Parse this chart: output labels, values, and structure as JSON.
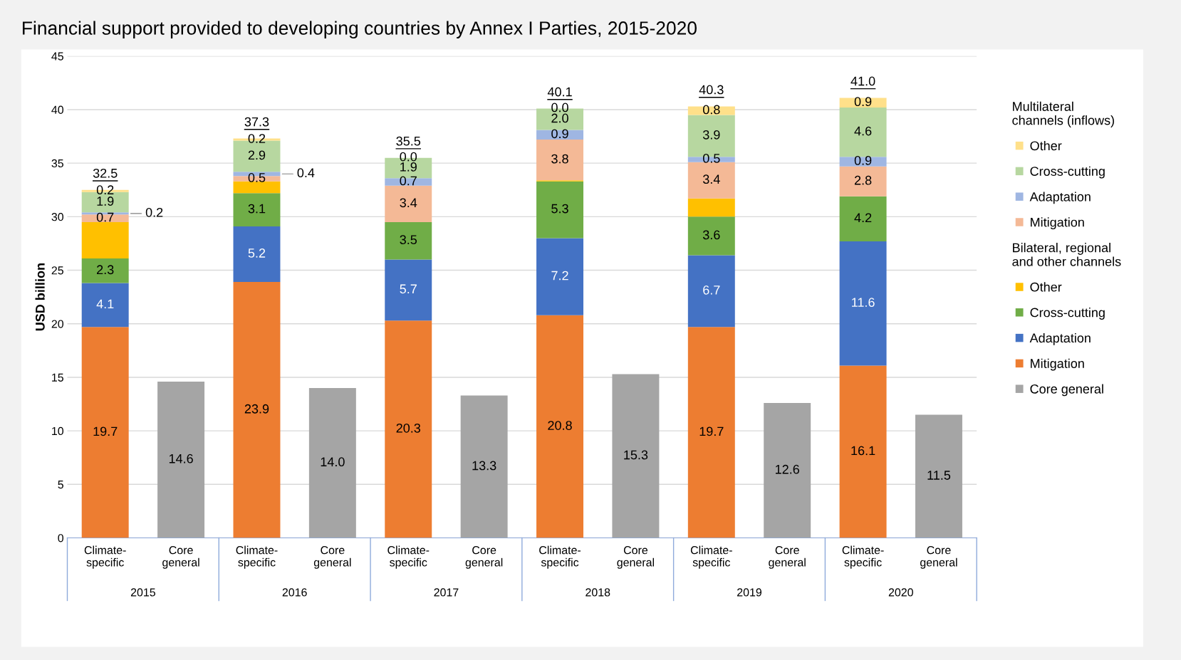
{
  "chart_data": {
    "type": "bar",
    "title": "Financial support provided to developing countries by Annex I Parties, 2015-2020",
    "ylabel": "USD billion",
    "categories": [
      "Climate-\nspecific",
      "Core\ngeneral",
      "Climate-\nspecific",
      "Core\ngeneral",
      "Climate-\nspecific",
      "Core\ngeneral",
      "Climate-\nspecific",
      "Core\ngeneral",
      "Climate-\nspecific",
      "Core\ngeneral",
      "Climate-\nspecific",
      "Core\ngeneral"
    ],
    "stacked": true,
    "series": [
      {
        "name": "Mitigation",
        "color": "#ed7d31",
        "values": [
          19.7,
          null,
          23.9,
          null,
          20.3,
          null,
          20.8,
          null,
          19.7,
          null,
          16.1,
          null
        ],
        "value_labels": [
          "19.7",
          null,
          "23.9",
          null,
          "20.3",
          null,
          "20.8",
          null,
          "19.7",
          null,
          "16.1",
          null
        ]
      },
      {
        "name": "Adaptation",
        "color": "#4472c4",
        "values": [
          4.1,
          null,
          5.2,
          null,
          5.7,
          null,
          7.2,
          null,
          6.7,
          null,
          11.6,
          null
        ],
        "value_labels": [
          "4.1",
          null,
          "5.2",
          null,
          "5.7",
          null,
          "7.2",
          null,
          "6.7",
          null,
          "11.6",
          null
        ]
      },
      {
        "name": "Cross-cutting",
        "color": "#70ad47",
        "values": [
          2.3,
          null,
          3.1,
          null,
          3.5,
          null,
          5.3,
          null,
          3.6,
          null,
          4.2,
          null
        ],
        "value_labels": [
          "2.3",
          null,
          "3.1",
          null,
          "3.5",
          null,
          "5.3",
          null,
          "3.6",
          null,
          "4.2",
          null
        ]
      },
      {
        "name": "Other",
        "color": "#ffc000",
        "values": [
          3.4,
          null,
          1.1,
          null,
          0,
          null,
          0.1,
          null,
          1.7,
          null,
          0,
          null
        ],
        "value_labels": [
          null,
          null,
          null,
          null,
          null,
          null,
          null,
          null,
          null,
          null,
          null,
          null
        ]
      },
      {
        "name": "Mitigation",
        "color": "#f4b996",
        "values": [
          0.7,
          null,
          0.5,
          null,
          3.4,
          null,
          3.8,
          null,
          3.4,
          null,
          2.8,
          null
        ],
        "value_labels": [
          "0.7",
          null,
          "0.5",
          null,
          "3.4",
          null,
          "3.8",
          null,
          "3.4",
          null,
          "2.8",
          null
        ]
      },
      {
        "name": "Adaptation",
        "color": "#9fb6e2",
        "values": [
          0.2,
          null,
          0.4,
          null,
          0.7,
          null,
          0.9,
          null,
          0.5,
          null,
          0.9,
          null
        ],
        "value_labels": [
          "0.2",
          null,
          "0.4",
          null,
          "0.7",
          null,
          "0.9",
          null,
          "0.5",
          null,
          "0.9",
          null
        ]
      },
      {
        "name": "Cross-cutting",
        "color": "#b7d7a0",
        "values": [
          1.9,
          null,
          2.9,
          null,
          1.9,
          null,
          2.0,
          null,
          3.9,
          null,
          4.6,
          null
        ],
        "value_labels": [
          "1.9",
          null,
          "2.9",
          null,
          "1.9",
          null,
          "2.0",
          null,
          "3.9",
          null,
          "4.6",
          null
        ]
      },
      {
        "name": "Other",
        "color": "#ffe08a",
        "values": [
          0.2,
          null,
          0.2,
          null,
          0.0,
          null,
          0.0,
          null,
          0.8,
          null,
          0.9,
          null
        ],
        "value_labels": [
          "0.2",
          null,
          "0.2",
          null,
          "0.0",
          null,
          "0.0",
          null,
          "0.8",
          null,
          "0.9",
          null
        ]
      },
      {
        "name": "Core general",
        "color": "#a5a5a5",
        "values": [
          null,
          14.6,
          null,
          14.0,
          null,
          13.3,
          null,
          15.3,
          null,
          12.6,
          null,
          11.5
        ],
        "value_labels": [
          null,
          "14.6",
          null,
          "14.0",
          null,
          "13.3",
          null,
          "15.3",
          null,
          "12.6",
          null,
          "11.5"
        ]
      }
    ],
    "totals": [
      "32.5",
      null,
      "37.3",
      null,
      "35.5",
      null,
      "40.1",
      null,
      "40.3",
      null,
      "41.0",
      null
    ],
    "ylim": [
      0,
      45
    ],
    "yticks": [
      0,
      5,
      10,
      15,
      20,
      25,
      30,
      35,
      40,
      45
    ],
    "grid": "y",
    "legend": "right",
    "annotations": [
      "Multilateral\nchannels (inflows)",
      "Bilateral, regional\nand other channels",
      "2015",
      "2016",
      "2017",
      "2018",
      "2019",
      "2020"
    ]
  }
}
